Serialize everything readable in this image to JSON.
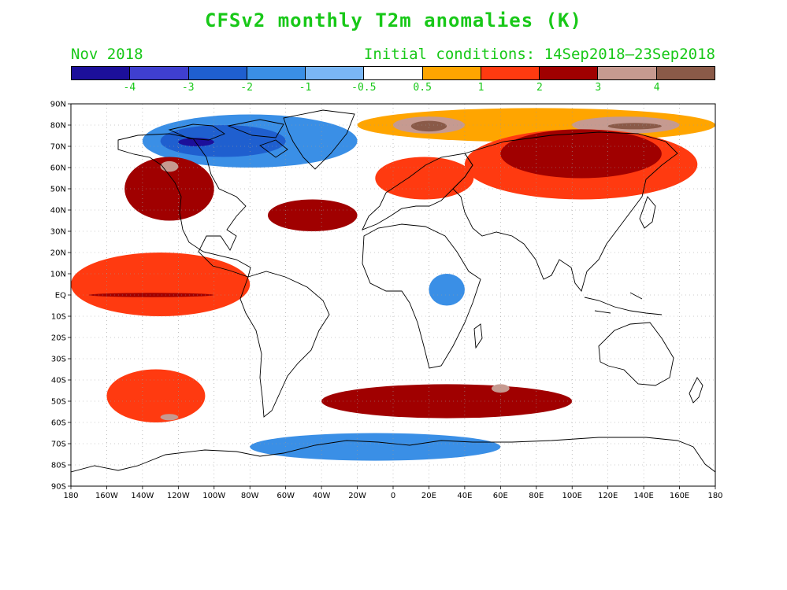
{
  "title": "CFSv2 monthly T2m anomalies (K)",
  "forecast_month": "Nov 2018",
  "initial_conditions": "Initial conditions: 14Sep2018–23Sep2018",
  "colorbar": {
    "colors": [
      "#1c0f9a",
      "#3f3fcf",
      "#1f5fcf",
      "#3a8fe6",
      "#7ab6f5",
      "#ffffff",
      "#ffa500",
      "#ff3a10",
      "#a00000",
      "#c69a90",
      "#8a5a48"
    ],
    "labels": [
      "-4",
      "-3",
      "-2",
      "-1",
      "-0.5",
      "0.5",
      "1",
      "2",
      "3",
      "4"
    ]
  },
  "lat_labels": [
    "90N",
    "80N",
    "70N",
    "60N",
    "50N",
    "40N",
    "30N",
    "20N",
    "10N",
    "EQ",
    "10S",
    "20S",
    "30S",
    "40S",
    "50S",
    "60S",
    "70S",
    "80S",
    "90S"
  ],
  "lon_labels": [
    "180",
    "160W",
    "140W",
    "120W",
    "100W",
    "80W",
    "60W",
    "40W",
    "20W",
    "0",
    "20E",
    "40E",
    "60E",
    "80E",
    "100E",
    "120E",
    "140E",
    "160E",
    "180"
  ],
  "anomaly_regions": [
    {
      "name": "arctic-north-atlantic-warm",
      "level": "0.5",
      "lon": [
        -20,
        180
      ],
      "lat": [
        72,
        88
      ]
    },
    {
      "name": "barents-sea-strong-warm",
      "level": "3",
      "lon": [
        0,
        40
      ],
      "lat": [
        76,
        84
      ]
    },
    {
      "name": "barents-sea-core",
      "level": "4",
      "lon": [
        10,
        30
      ],
      "lat": [
        77,
        82
      ]
    },
    {
      "name": "kara-laptev-strong-warm",
      "level": "3",
      "lon": [
        100,
        160
      ],
      "lat": [
        76,
        84
      ]
    },
    {
      "name": "kara-laptev-core",
      "level": "4",
      "lon": [
        120,
        150
      ],
      "lat": [
        78,
        81
      ]
    },
    {
      "name": "siberia-warm",
      "level": "1",
      "lon": [
        40,
        170
      ],
      "lat": [
        45,
        78
      ]
    },
    {
      "name": "siberia-very-warm",
      "level": "2",
      "lon": [
        60,
        150
      ],
      "lat": [
        55,
        78
      ]
    },
    {
      "name": "europe-warm",
      "level": "1",
      "lon": [
        -10,
        45
      ],
      "lat": [
        45,
        65
      ]
    },
    {
      "name": "canada-arctic-cold",
      "level": "-1",
      "lon": [
        -140,
        -20
      ],
      "lat": [
        60,
        85
      ]
    },
    {
      "name": "canada-arctic-colder",
      "level": "-2",
      "lon": [
        -130,
        -60
      ],
      "lat": [
        65,
        80
      ]
    },
    {
      "name": "canada-arctic-coldest",
      "level": "-4",
      "lon": [
        -120,
        -100
      ],
      "lat": [
        70,
        74
      ]
    },
    {
      "name": "western-north-america-warm",
      "level": "2",
      "lon": [
        -150,
        -100
      ],
      "lat": [
        35,
        65
      ]
    },
    {
      "name": "alaska-core",
      "level": "3",
      "lon": [
        -130,
        -120
      ],
      "lat": [
        58,
        63
      ]
    },
    {
      "name": "north-atlantic-warm",
      "level": "2",
      "lon": [
        -70,
        -20
      ],
      "lat": [
        30,
        45
      ]
    },
    {
      "name": "tropical-pacific-warm",
      "level": "1",
      "lon": [
        -180,
        -80
      ],
      "lat": [
        -10,
        20
      ]
    },
    {
      "name": "equatorial-pacific-strip",
      "level": "2",
      "lon": [
        -170,
        -100
      ],
      "lat": [
        -1,
        1
      ]
    },
    {
      "name": "south-pacific-warm",
      "level": "1",
      "lon": [
        -160,
        -105
      ],
      "lat": [
        -60,
        -35
      ]
    },
    {
      "name": "south-pacific-core",
      "level": "3",
      "lon": [
        -130,
        -120
      ],
      "lat": [
        -59,
        -56
      ]
    },
    {
      "name": "southern-ocean-warm",
      "level": "2",
      "lon": [
        -40,
        100
      ],
      "lat": [
        -58,
        -42
      ]
    },
    {
      "name": "southern-ocean-core",
      "level": "3",
      "lon": [
        55,
        65
      ],
      "lat": [
        -46,
        -42
      ]
    },
    {
      "name": "east-africa-cool",
      "level": "-1",
      "lon": [
        20,
        40
      ],
      "lat": [
        -5,
        10
      ]
    },
    {
      "name": "antarctic-cool-patches",
      "level": "-1",
      "lon": [
        -80,
        60
      ],
      "lat": [
        -78,
        -65
      ]
    }
  ]
}
